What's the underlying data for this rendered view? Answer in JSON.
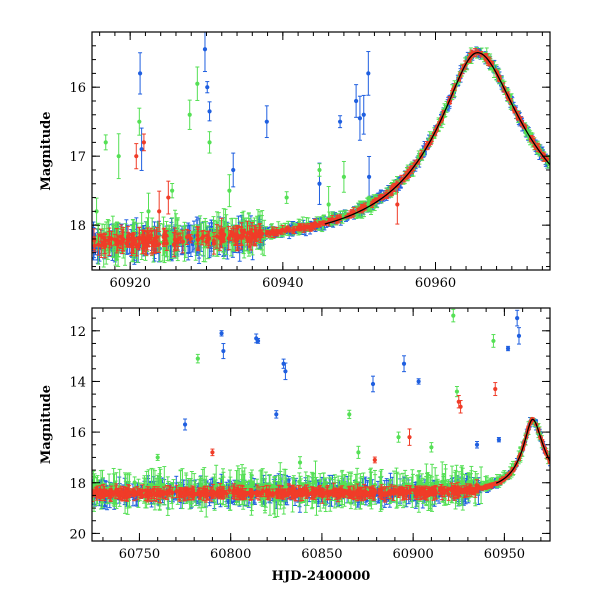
{
  "colors": {
    "blue": "#1f5fe0",
    "green": "#55e055",
    "red": "#f03c28",
    "axis": "#000000",
    "model": "#000000"
  },
  "chart_data": [
    {
      "id": "zoom-panel",
      "type": "scatter",
      "title": "",
      "xlabel": "",
      "ylabel": "Magnitude",
      "xlim": [
        60915,
        60975
      ],
      "ylim": [
        18.65,
        15.2
      ],
      "y_inverted": true,
      "x_ticks": [
        60920,
        60940,
        60960
      ],
      "x_tick_labels": [
        "60920",
        "60940",
        "60960"
      ],
      "y_ticks": [
        16,
        17,
        18
      ],
      "y_tick_labels": [
        "16",
        "17",
        "18"
      ],
      "x_minor_step": 2,
      "y_minor_step": 0.2,
      "series": [
        {
          "name": "blue",
          "color": "blue",
          "baseline": 18.32,
          "band": 0.16,
          "spread": 0.25,
          "density": 9,
          "outliers": [
            [
              60921.3,
              15.8
            ],
            [
              60921.5,
              16.9
            ],
            [
              60929.8,
              15.45
            ],
            [
              60930.1,
              16.0
            ],
            [
              60930.4,
              16.35
            ],
            [
              60933.5,
              17.2
            ],
            [
              60937.9,
              16.5
            ],
            [
              60944.8,
              17.4
            ],
            [
              60947.5,
              16.5
            ],
            [
              60949.6,
              16.2
            ],
            [
              60950.1,
              16.45
            ],
            [
              60950.6,
              16.4
            ],
            [
              60951.2,
              15.8
            ],
            [
              60951.3,
              17.3
            ]
          ]
        },
        {
          "name": "green",
          "color": "green",
          "baseline": 18.3,
          "band": 0.16,
          "spread": 0.3,
          "density": 7,
          "outliers": [
            [
              60915.6,
              17.8
            ],
            [
              60916.8,
              16.8
            ],
            [
              60918.5,
              17.0
            ],
            [
              60921.2,
              16.5
            ],
            [
              60922.4,
              17.8
            ],
            [
              60925.5,
              17.5
            ],
            [
              60927.8,
              16.4
            ],
            [
              60928.8,
              15.95
            ],
            [
              60930.4,
              16.8
            ],
            [
              60933.0,
              17.5
            ],
            [
              60940.5,
              17.6
            ],
            [
              60944.8,
              17.2
            ],
            [
              60946.0,
              17.7
            ],
            [
              60948.0,
              17.3
            ]
          ]
        },
        {
          "name": "red",
          "color": "red",
          "baseline": 18.32,
          "band": 0.12,
          "spread": 0.15,
          "density": 6,
          "outliers": [
            [
              60920.8,
              17.0
            ],
            [
              60921.8,
              16.8
            ],
            [
              60923.8,
              17.8
            ],
            [
              60925.0,
              17.6
            ],
            [
              60955.0,
              17.7
            ]
          ]
        }
      ],
      "model_curve": {
        "peak_x": 60965.5,
        "peak_mag": 15.5,
        "base_mag": 18.35,
        "t_rise": 3.6,
        "t_decay": 4.2
      }
    },
    {
      "id": "full-panel",
      "type": "scatter",
      "title": "",
      "xlabel": "HJD-2400000",
      "ylabel": "Magnitude",
      "xlim": [
        60724,
        60975
      ],
      "ylim": [
        20.3,
        11.1
      ],
      "y_inverted": true,
      "x_ticks": [
        60750,
        60800,
        60850,
        60900,
        60950
      ],
      "x_tick_labels": [
        "60750",
        "60800",
        "60850",
        "60900",
        "60950"
      ],
      "y_ticks": [
        12,
        14,
        16,
        18,
        20
      ],
      "y_tick_labels": [
        "12",
        "14",
        "16",
        "18",
        "20"
      ],
      "x_minor_step": 10,
      "y_minor_step": 0.5,
      "series": [
        {
          "name": "blue",
          "color": "blue",
          "baseline": 18.4,
          "band": 0.35,
          "spread": 0.5,
          "density": 2.2,
          "outliers": [
            [
              60795,
              12.1
            ],
            [
              60796,
              12.8
            ],
            [
              60814,
              12.3
            ],
            [
              60815,
              12.4
            ],
            [
              60829,
              13.3
            ],
            [
              60830,
              13.6
            ],
            [
              60775,
              15.7
            ],
            [
              60825,
              15.3
            ],
            [
              60878,
              14.1
            ],
            [
              60895,
              13.3
            ],
            [
              60903,
              14.0
            ],
            [
              60952,
              12.7
            ],
            [
              60957,
              11.5
            ],
            [
              60958,
              12.2
            ],
            [
              60935,
              16.5
            ],
            [
              60947,
              16.3
            ]
          ]
        },
        {
          "name": "green",
          "color": "green",
          "baseline": 18.3,
          "band": 0.4,
          "spread": 0.8,
          "density": 1.9,
          "outliers": [
            [
              60922,
              11.4
            ],
            [
              60944,
              12.4
            ],
            [
              60782,
              13.1
            ],
            [
              60924,
              14.4
            ],
            [
              60865,
              15.3
            ],
            [
              60892,
              16.2
            ],
            [
              60870,
              16.8
            ],
            [
              60760,
              17.0
            ],
            [
              60838,
              17.2
            ],
            [
              60910,
              16.6
            ]
          ]
        },
        {
          "name": "red",
          "color": "red",
          "baseline": 18.42,
          "band": 0.18,
          "spread": 0.25,
          "density": 2.5,
          "outliers": [
            [
              60925,
              14.8
            ],
            [
              60926,
              15.0
            ],
            [
              60945,
              14.3
            ],
            [
              60790,
              16.8
            ],
            [
              60898,
              16.2
            ],
            [
              60879,
              17.1
            ]
          ]
        }
      ],
      "model_curve": {
        "peak_x": 60965.5,
        "peak_mag": 15.5,
        "base_mag": 18.4,
        "t_rise": 3.6,
        "t_decay": 4.2
      }
    }
  ]
}
